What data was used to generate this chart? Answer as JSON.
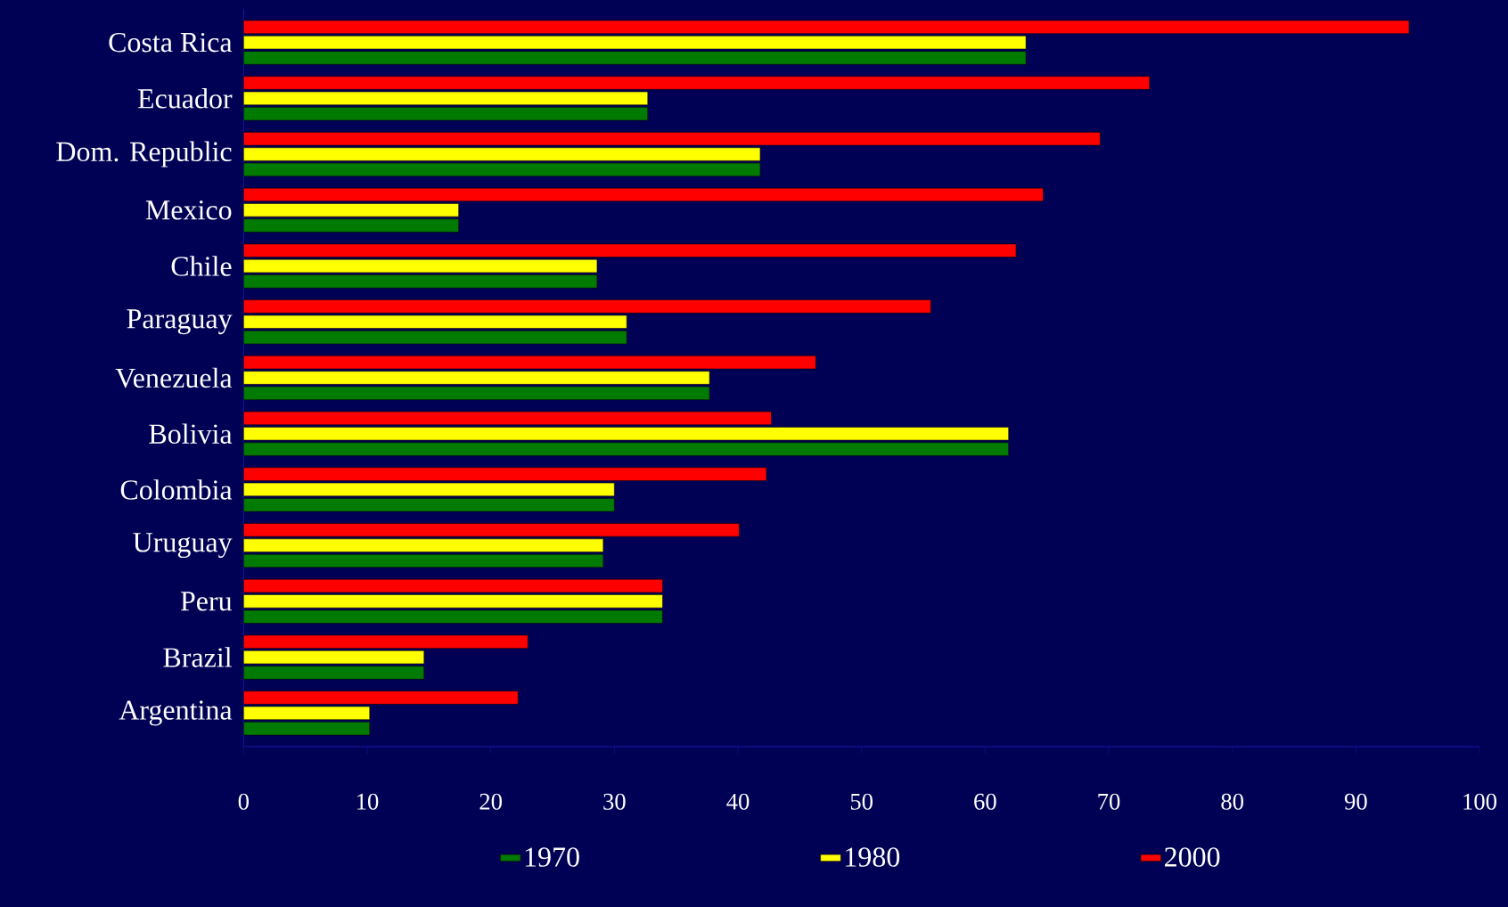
{
  "chart_data": {
    "type": "bar",
    "orientation": "horizontal",
    "categories": [
      "Costa Rica",
      "Ecuador",
      "Dom. Republic",
      "Mexico",
      "Chile",
      "Paraguay",
      "Venezuela",
      "Bolivia",
      "Colombia",
      "Uruguay",
      "Peru",
      "Brazil",
      "Argentina"
    ],
    "series": [
      {
        "name": "1970",
        "color": "#007a00",
        "values": [
          63.3,
          32.7,
          41.8,
          17.4,
          28.6,
          31.0,
          37.7,
          61.9,
          30.0,
          29.1,
          33.9,
          14.6,
          10.2
        ]
      },
      {
        "name": "1980",
        "color": "#ffff00",
        "values": [
          63.3,
          32.7,
          41.8,
          17.4,
          28.6,
          31.0,
          37.7,
          61.9,
          30.0,
          29.1,
          33.9,
          14.6,
          10.2
        ]
      },
      {
        "name": "2000",
        "color": "#ff0000",
        "values": [
          94.3,
          73.3,
          69.3,
          64.7,
          62.5,
          55.6,
          46.3,
          42.7,
          42.3,
          40.1,
          33.9,
          23.0,
          22.2
        ]
      }
    ],
    "xlim": [
      0,
      100
    ],
    "xticks": [
      0,
      10,
      20,
      30,
      40,
      50,
      60,
      70,
      80,
      90,
      100
    ],
    "grid": false,
    "legend": "bottom"
  }
}
